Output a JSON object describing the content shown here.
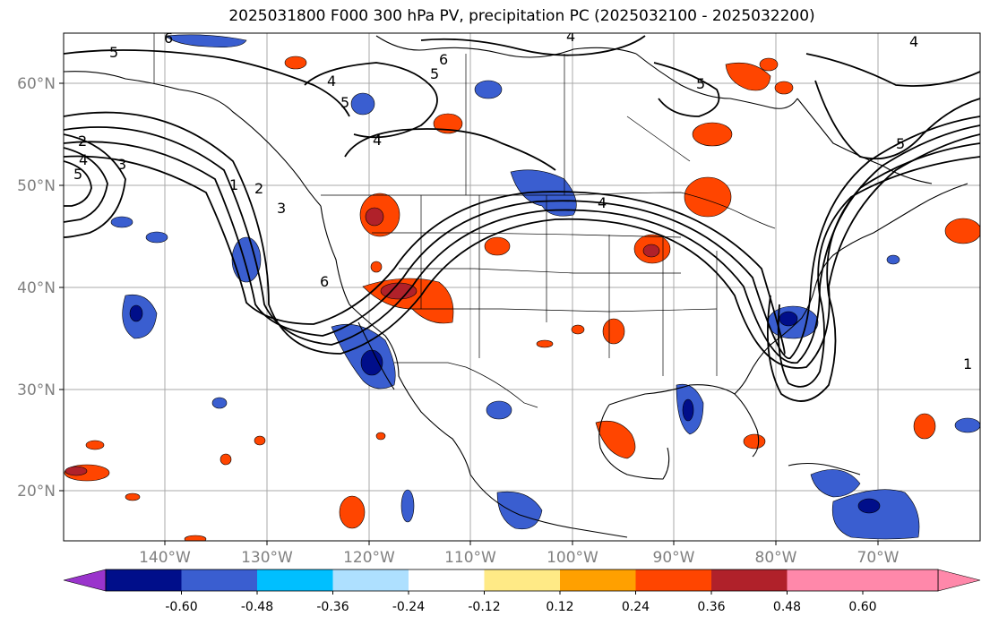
{
  "title": "2025031800 F000 300 hPa PV, precipitation PC (2025032100 - 2025032200)",
  "lat_labels": [
    "60°N",
    "50°N",
    "40°N",
    "30°N",
    "20°N"
  ],
  "lon_labels": [
    "140°W",
    "130°W",
    "120°W",
    "110°W",
    "100°W",
    "90°W",
    "80°W",
    "70°W"
  ],
  "contour_labels": [
    "5",
    "6",
    "5",
    "4",
    "4",
    "5",
    "4",
    "6",
    "5",
    "2",
    "4",
    "3",
    "5",
    "1",
    "2",
    "3",
    "4",
    "6",
    "5",
    "4",
    "1"
  ],
  "colorbar": {
    "ticks": [
      "-0.60",
      "-0.48",
      "-0.36",
      "-0.24",
      "-0.12",
      "0.12",
      "0.24",
      "0.36",
      "0.48",
      "0.60"
    ],
    "colors": [
      "#9a34cc",
      "#000e8a",
      "#3a5ed0",
      "#00bfff",
      "#aee0ff",
      "#ffffff",
      "#ffea86",
      "#ffa000",
      "#ff4500",
      "#b0212a",
      "#ff88aa"
    ]
  },
  "colors": {
    "neg_strong": "#000e8a",
    "neg_mid": "#3a5ed0",
    "neg_light": "#00bfff",
    "pos_light": "#ffa000",
    "pos_mid": "#ff4500",
    "pos_strong": "#b0212a"
  }
}
